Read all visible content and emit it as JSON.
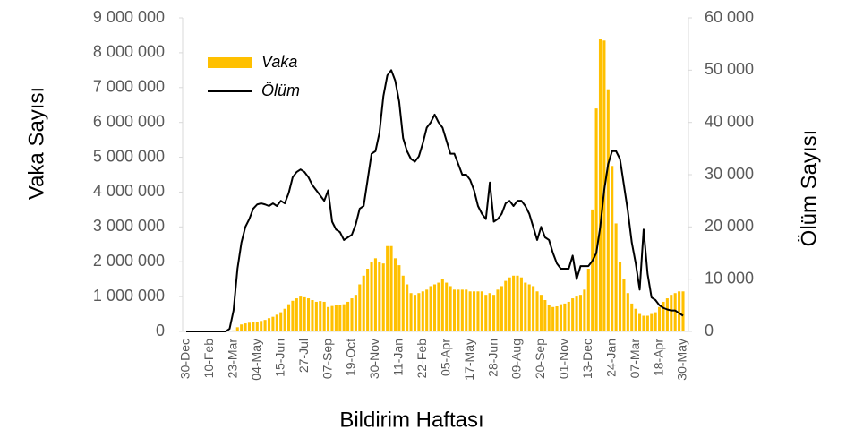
{
  "chart_data": {
    "type": "bar_line",
    "x_label": "Bildirim Haftası",
    "y_label": "Vaka Sayısı",
    "y2_label": "Ölüm Sayısı",
    "categories": [
      "30-Dec",
      null,
      null,
      null,
      null,
      null,
      "10-Feb",
      null,
      null,
      null,
      null,
      null,
      "23-Mar",
      null,
      null,
      null,
      null,
      null,
      "04-May",
      null,
      null,
      null,
      null,
      null,
      "15-Jun",
      null,
      null,
      null,
      null,
      null,
      "27-Jul",
      null,
      null,
      null,
      null,
      null,
      "07-Sep",
      null,
      null,
      null,
      null,
      null,
      "19-Oct",
      null,
      null,
      null,
      null,
      null,
      "30-Nov",
      null,
      null,
      null,
      null,
      null,
      "11-Jan",
      null,
      null,
      null,
      null,
      null,
      "22-Feb",
      null,
      null,
      null,
      null,
      null,
      "05-Apr",
      null,
      null,
      null,
      null,
      null,
      "17-May",
      null,
      null,
      null,
      null,
      null,
      "28-Jun",
      null,
      null,
      null,
      null,
      null,
      "09-Aug",
      null,
      null,
      null,
      null,
      null,
      "20-Sep",
      null,
      null,
      null,
      null,
      null,
      "01-Nov",
      null,
      null,
      null,
      null,
      null,
      "13-Dec",
      null,
      null,
      null,
      null,
      null,
      "24-Jan",
      null,
      null,
      null,
      null,
      null,
      "07-Mar",
      null,
      null,
      null,
      null,
      null,
      "18-Apr",
      null,
      null,
      null,
      null,
      null,
      "30-May"
    ],
    "series": [
      {
        "name": "Vaka",
        "kind": "bar",
        "color": "#FFC000",
        "values": [
          0,
          0,
          0,
          0,
          0,
          0,
          0,
          0,
          0,
          0,
          0,
          5000,
          30000,
          120000,
          200000,
          230000,
          250000,
          260000,
          280000,
          300000,
          330000,
          380000,
          420000,
          480000,
          550000,
          650000,
          780000,
          880000,
          950000,
          1000000,
          980000,
          950000,
          900000,
          850000,
          870000,
          850000,
          700000,
          730000,
          750000,
          760000,
          780000,
          850000,
          950000,
          1050000,
          1350000,
          1600000,
          1800000,
          2000000,
          2100000,
          2000000,
          1950000,
          2450000,
          2450000,
          2100000,
          1900000,
          1600000,
          1350000,
          1100000,
          1050000,
          1100000,
          1150000,
          1200000,
          1300000,
          1350000,
          1400000,
          1500000,
          1400000,
          1300000,
          1200000,
          1200000,
          1200000,
          1200000,
          1150000,
          1150000,
          1150000,
          1150000,
          1050000,
          1100000,
          1050000,
          1200000,
          1300000,
          1450000,
          1550000,
          1600000,
          1600000,
          1550000,
          1400000,
          1350000,
          1300000,
          1150000,
          1050000,
          900000,
          750000,
          700000,
          720000,
          780000,
          800000,
          850000,
          950000,
          1000000,
          1050000,
          1200000,
          1800000,
          3500000,
          6400000,
          8400000,
          8350000,
          6950000,
          4750000,
          3100000,
          2000000,
          1500000,
          1100000,
          800000,
          650000,
          500000,
          450000,
          450000,
          500000,
          550000,
          700000,
          850000,
          950000,
          1050000,
          1100000,
          1150000,
          1150000
        ]
      },
      {
        "name": "Ölüm",
        "kind": "line",
        "axis": "y2",
        "color": "#000000",
        "values": [
          0,
          0,
          0,
          0,
          0,
          0,
          0,
          0,
          0,
          0,
          0,
          500,
          4000,
          12000,
          17000,
          20000,
          21500,
          23500,
          24300,
          24500,
          24300,
          24000,
          24500,
          24000,
          25000,
          24500,
          26500,
          29500,
          30500,
          31000,
          30500,
          29500,
          28000,
          27000,
          26000,
          25000,
          27000,
          21000,
          19500,
          19000,
          17500,
          18000,
          18500,
          20500,
          23500,
          24000,
          29000,
          34000,
          34500,
          38000,
          45000,
          49000,
          50000,
          48000,
          44000,
          37000,
          34500,
          33000,
          32500,
          33500,
          36000,
          39000,
          40000,
          41500,
          40000,
          39000,
          36500,
          34000,
          34000,
          32000,
          30000,
          30000,
          29000,
          27000,
          24000,
          22500,
          21500,
          28500,
          21000,
          21500,
          22500,
          24500,
          25000,
          24000,
          25000,
          25000,
          24000,
          22500,
          20000,
          17500,
          20000,
          18000,
          17500,
          15000,
          13000,
          12000,
          12000,
          12000,
          14500,
          10000,
          12500,
          12500,
          12500,
          13500,
          15000,
          20000,
          27000,
          32000,
          34500,
          34500,
          33000,
          28000,
          23000,
          17000,
          13000,
          8000,
          19500,
          11000,
          6500,
          6000,
          5000,
          4500,
          4200,
          4000,
          4000,
          3500,
          3000
        ]
      }
    ],
    "ylim": [
      0,
      9000000
    ],
    "yticks": [
      0,
      {
        "value": 1000000,
        "label": "1 000 000"
      },
      {
        "value": 2000000,
        "label": "2 000 000"
      },
      {
        "value": 3000000,
        "label": "3 000 000"
      },
      {
        "value": 4000000,
        "label": "4 000 000"
      },
      {
        "value": 5000000,
        "label": "5 000 000"
      },
      {
        "value": 6000000,
        "label": "6 000 000"
      },
      {
        "value": 7000000,
        "label": "7 000 000"
      },
      {
        "value": 8000000,
        "label": "8 000 000"
      },
      {
        "value": 9000000,
        "label": "9 000 000"
      }
    ],
    "y2lim": [
      0,
      60000
    ],
    "y2ticks": [
      0,
      {
        "value": 10000,
        "label": "10 000"
      },
      {
        "value": 20000,
        "label": "20 000"
      },
      {
        "value": 30000,
        "label": "30 000"
      },
      {
        "value": 40000,
        "label": "40 000"
      },
      {
        "value": 50000,
        "label": "50 000"
      },
      {
        "value": 60000,
        "label": "60 000"
      }
    ],
    "grid": false
  }
}
